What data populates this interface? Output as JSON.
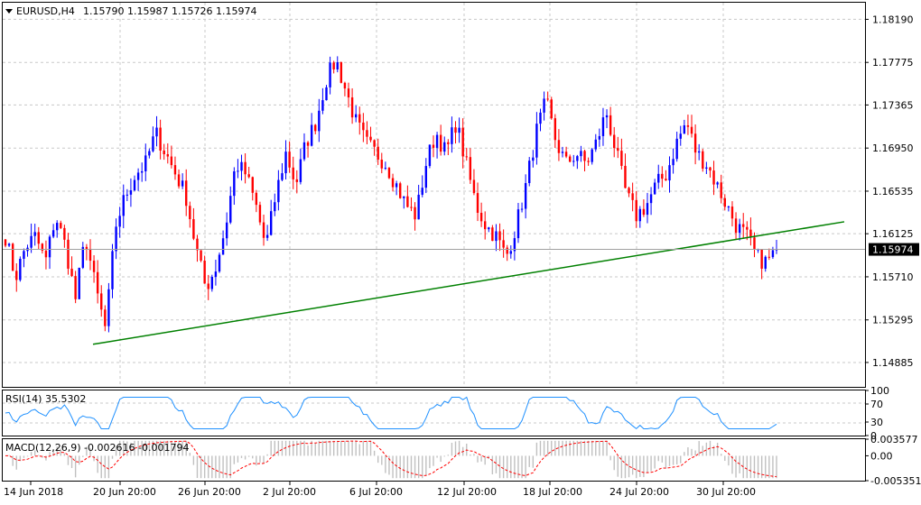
{
  "header": {
    "symbol": "EURUSD,H4",
    "ohlc": "1.15790 1.15987 1.15726 1.15974"
  },
  "colors": {
    "bull": "#0000ff",
    "bear": "#ff0000",
    "trendline": "#008000",
    "rsi_line": "#1e90ff",
    "macd_hist": "#c0c0c0",
    "macd_signal": "#ff0000",
    "price_label_bg": "#000000",
    "grid": "#c8c8c8"
  },
  "chart_data": [
    {
      "type": "candlestick",
      "title": "EURUSD,H4",
      "ylim": [
        1.1465,
        1.1835
      ],
      "y_ticks": [
        "1.18190",
        "1.17775",
        "1.17365",
        "1.16950",
        "1.16535",
        "1.16125",
        "1.15710",
        "1.15295",
        "1.14885"
      ],
      "x_ticks": [
        "14 Jun 2018",
        "20 Jun 20:00",
        "26 Jun 20:00",
        "2 Jul 20:00",
        "6 Jul 20:00",
        "12 Jul 20:00",
        "18 Jul 20:00",
        "24 Jul 20:00",
        "30 Jul 20:00"
      ],
      "current_price": "1.15974",
      "grid": true,
      "trendline": {
        "from": [
          1.1506
        ],
        "to": [
          1.1624
        ]
      },
      "close_anchors": [
        1.161,
        1.157,
        1.16,
        1.161,
        1.1585,
        1.163,
        1.16,
        1.155,
        1.161,
        1.156,
        1.152,
        1.162,
        1.165,
        1.167,
        1.168,
        1.171,
        1.169,
        1.167,
        1.165,
        1.16,
        1.156,
        1.158,
        1.162,
        1.168,
        1.167,
        1.164,
        1.16,
        1.165,
        1.169,
        1.166,
        1.17,
        1.172,
        1.176,
        1.178,
        1.175,
        1.172,
        1.17,
        1.169,
        1.168,
        1.166,
        1.164,
        1.163,
        1.168,
        1.171,
        1.169,
        1.172,
        1.168,
        1.164,
        1.162,
        1.161,
        1.159,
        1.162,
        1.166,
        1.171,
        1.174,
        1.17,
        1.168,
        1.169,
        1.168,
        1.17,
        1.173,
        1.169,
        1.165,
        1.163,
        1.164,
        1.166,
        1.167,
        1.17,
        1.172,
        1.169,
        1.168,
        1.166,
        1.164,
        1.162,
        1.161,
        1.159,
        1.1585,
        1.1597
      ]
    },
    {
      "type": "line",
      "title": "RSI(14) 35.5302",
      "ylim": [
        0,
        100
      ],
      "y_ticks": [
        "100",
        "70",
        "30",
        "0"
      ]
    },
    {
      "type": "bar",
      "title": "MACD(12,26,9) -0.002616 -0.001794",
      "y_ticks": [
        "0.003577",
        "0.00",
        "-0.005351"
      ]
    }
  ]
}
